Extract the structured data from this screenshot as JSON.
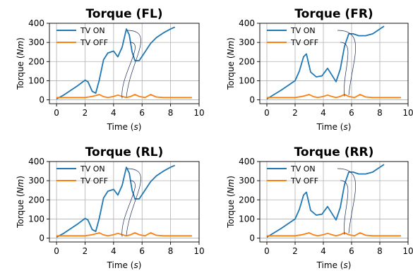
{
  "chart_data": [
    {
      "type": "line",
      "title": "Torque (FL)",
      "xlabel_text": "Time ",
      "xlabel_unit": "s",
      "ylabel_text": "Torque ",
      "ylabel_unit": "Nm",
      "xlim": [
        -0.5,
        10
      ],
      "ylim": [
        -20,
        400
      ],
      "xticks": [
        0,
        2,
        4,
        6,
        8,
        10
      ],
      "yticks": [
        0,
        100,
        200,
        300,
        400
      ],
      "grid": true,
      "legend": "top-left",
      "series": [
        {
          "name": "TV ON",
          "color": "#1f77b4",
          "x": [
            0,
            0.5,
            1.0,
            1.5,
            2.0,
            2.2,
            2.5,
            2.75,
            3.0,
            3.3,
            3.6,
            4.0,
            4.3,
            4.6,
            4.9,
            5.1,
            5.3,
            5.5,
            5.8,
            6.2,
            6.6,
            7.0,
            7.5,
            8.0,
            8.3
          ],
          "y": [
            5,
            25,
            50,
            75,
            103,
            95,
            45,
            35,
            105,
            210,
            245,
            255,
            225,
            275,
            370,
            340,
            250,
            205,
            205,
            250,
            295,
            325,
            350,
            370,
            380
          ]
        },
        {
          "name": "TV OFF",
          "color": "#ff7f0e",
          "x": [
            0,
            1,
            2,
            2.5,
            3.0,
            3.3,
            3.6,
            4.0,
            4.3,
            4.6,
            4.9,
            5.2,
            5.5,
            5.8,
            6.2,
            6.6,
            7.0,
            7.5,
            8.0,
            8.5,
            9.0,
            9.5
          ],
          "y": [
            12,
            12,
            12,
            18,
            28,
            17,
            12,
            18,
            25,
            18,
            12,
            18,
            28,
            18,
            12,
            28,
            15,
            12,
            12,
            12,
            12,
            12
          ]
        }
      ]
    },
    {
      "type": "line",
      "title": "Torque (FR)",
      "xlabel_text": "Time ",
      "xlabel_unit": "s",
      "ylabel_text": "Torque ",
      "ylabel_unit": "Nm",
      "xlim": [
        -0.5,
        10
      ],
      "ylim": [
        -20,
        400
      ],
      "xticks": [
        0,
        2,
        4,
        6,
        8,
        10
      ],
      "yticks": [
        0,
        100,
        200,
        300,
        400
      ],
      "grid": true,
      "legend": "top-left",
      "series": [
        {
          "name": "TV ON",
          "color": "#1f77b4",
          "x": [
            0,
            1.0,
            2.0,
            2.3,
            2.6,
            2.8,
            3.1,
            3.5,
            3.9,
            4.3,
            4.6,
            4.9,
            5.2,
            5.5,
            5.8,
            6.1,
            6.5,
            7.0,
            7.5,
            8.0,
            8.3
          ],
          "y": [
            5,
            50,
            100,
            150,
            225,
            240,
            145,
            120,
            125,
            165,
            130,
            95,
            160,
            280,
            345,
            345,
            335,
            335,
            345,
            370,
            385
          ]
        },
        {
          "name": "TV OFF",
          "color": "#ff7f0e",
          "x": [
            0,
            1,
            2,
            2.5,
            3.0,
            3.3,
            3.6,
            4.0,
            4.3,
            4.6,
            4.9,
            5.2,
            5.5,
            5.8,
            6.2,
            6.6,
            7.0,
            7.5,
            8.0,
            8.5,
            9.0,
            9.5
          ],
          "y": [
            12,
            12,
            12,
            18,
            28,
            17,
            12,
            18,
            25,
            18,
            12,
            18,
            28,
            18,
            12,
            28,
            15,
            12,
            12,
            12,
            12,
            12
          ]
        }
      ]
    },
    {
      "type": "line",
      "title": "Torque (RL)",
      "xlabel_text": "Time ",
      "xlabel_unit": "s",
      "ylabel_text": "Torque ",
      "ylabel_unit": "Nm",
      "xlim": [
        -0.5,
        10
      ],
      "ylim": [
        -20,
        400
      ],
      "xticks": [
        0,
        2,
        4,
        6,
        8,
        10
      ],
      "yticks": [
        0,
        100,
        200,
        300,
        400
      ],
      "grid": true,
      "legend": "top-left",
      "series": [
        {
          "name": "TV ON",
          "color": "#1f77b4",
          "x": [
            0,
            0.5,
            1.0,
            1.5,
            2.0,
            2.2,
            2.5,
            2.75,
            3.0,
            3.3,
            3.6,
            4.0,
            4.3,
            4.6,
            4.9,
            5.1,
            5.3,
            5.5,
            5.8,
            6.2,
            6.6,
            7.0,
            7.5,
            8.0,
            8.3
          ],
          "y": [
            5,
            25,
            50,
            75,
            103,
            95,
            45,
            35,
            105,
            210,
            245,
            255,
            225,
            275,
            370,
            340,
            250,
            205,
            205,
            250,
            295,
            325,
            350,
            370,
            380
          ]
        },
        {
          "name": "TV OFF",
          "color": "#ff7f0e",
          "x": [
            0,
            1,
            2,
            2.5,
            3.0,
            3.3,
            3.6,
            4.0,
            4.3,
            4.6,
            4.9,
            5.2,
            5.5,
            5.8,
            6.2,
            6.6,
            7.0,
            7.5,
            8.0,
            8.5,
            9.0,
            9.5
          ],
          "y": [
            12,
            12,
            12,
            18,
            28,
            17,
            12,
            18,
            25,
            18,
            12,
            18,
            28,
            18,
            12,
            28,
            15,
            12,
            12,
            12,
            12,
            12
          ]
        }
      ]
    },
    {
      "type": "line",
      "title": "Torque (RR)",
      "xlabel_text": "Time ",
      "xlabel_unit": "s",
      "ylabel_text": "Torque ",
      "ylabel_unit": "Nm",
      "xlim": [
        -0.5,
        10
      ],
      "ylim": [
        -20,
        400
      ],
      "xticks": [
        0,
        2,
        4,
        6,
        8,
        10
      ],
      "yticks": [
        0,
        100,
        200,
        300,
        400
      ],
      "grid": true,
      "legend": "top-left",
      "series": [
        {
          "name": "TV ON",
          "color": "#1f77b4",
          "x": [
            0,
            1.0,
            2.0,
            2.3,
            2.6,
            2.8,
            3.1,
            3.5,
            3.9,
            4.3,
            4.6,
            4.9,
            5.2,
            5.5,
            5.8,
            6.1,
            6.5,
            7.0,
            7.5,
            8.0,
            8.3
          ],
          "y": [
            5,
            50,
            100,
            150,
            225,
            240,
            145,
            120,
            125,
            165,
            130,
            95,
            160,
            280,
            345,
            345,
            335,
            335,
            345,
            370,
            385
          ]
        },
        {
          "name": "TV OFF",
          "color": "#ff7f0e",
          "x": [
            0,
            1,
            2,
            2.5,
            3.0,
            3.3,
            3.6,
            4.0,
            4.3,
            4.6,
            4.9,
            5.2,
            5.5,
            5.8,
            6.2,
            6.6,
            7.0,
            7.5,
            8.0,
            8.5,
            9.0,
            9.5
          ],
          "y": [
            12,
            12,
            12,
            18,
            28,
            17,
            12,
            18,
            25,
            18,
            12,
            18,
            28,
            18,
            12,
            28,
            15,
            12,
            12,
            12,
            12,
            12
          ]
        }
      ]
    }
  ]
}
